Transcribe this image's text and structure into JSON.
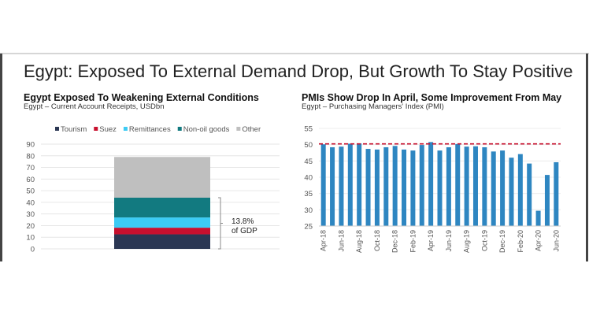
{
  "page": {
    "title": "Egypt: Exposed To External Demand Drop, But Growth To Stay Positive"
  },
  "chart_data": [
    {
      "type": "bar",
      "stacked": true,
      "title": "Egypt Exposed To Weakening External Conditions",
      "subtitle": "Egypt – Current Account Receipts, USDbn",
      "categories": [
        ""
      ],
      "series": [
        {
          "name": "Tourism",
          "values": [
            12.5
          ],
          "color": "#2b3753"
        },
        {
          "name": "Suez",
          "values": [
            5.7
          ],
          "color": "#c8102e"
        },
        {
          "name": "Remittances",
          "values": [
            8.8
          ],
          "color": "#3ccbf4"
        },
        {
          "name": "Non-oil goods",
          "values": [
            17
          ],
          "color": "#127a80"
        },
        {
          "name": "Other",
          "values": [
            35
          ],
          "color": "#bfbfbf"
        }
      ],
      "ylim": [
        0,
        90
      ],
      "yticks": [
        0,
        10,
        20,
        30,
        40,
        50,
        60,
        70,
        80,
        90
      ],
      "legend": "top",
      "grid": true,
      "annotation": {
        "line1": "13.8%",
        "line2": "of GDP",
        "bracket_from": 0,
        "bracket_to": 44
      }
    },
    {
      "type": "bar",
      "title": "PMIs Show Drop In April, Some Improvement From May",
      "subtitle": "Egypt – Purchasing Managers' Index (PMI)",
      "x": [
        "Apr-18",
        "May-18",
        "Jun-18",
        "Jul-18",
        "Aug-18",
        "Sep-18",
        "Oct-18",
        "Nov-18",
        "Dec-18",
        "Jan-19",
        "Feb-19",
        "Mar-19",
        "Apr-19",
        "May-19",
        "Jun-19",
        "Jul-19",
        "Aug-19",
        "Sep-19",
        "Oct-19",
        "Nov-19",
        "Dec-19",
        "Jan-20",
        "Feb-20",
        "Mar-20",
        "Apr-20",
        "May-20",
        "Jun-20"
      ],
      "values": [
        50.1,
        49.2,
        49.4,
        50.3,
        50.4,
        48.7,
        48.5,
        49.2,
        49.6,
        48.5,
        48.2,
        49.9,
        50.8,
        48.2,
        49.2,
        50.2,
        49.4,
        49.5,
        49.2,
        47.9,
        48.2,
        46.0,
        47.1,
        44.2,
        29.7,
        40.7,
        44.6
      ],
      "xtick_labels": [
        "Apr-18",
        "Jun-18",
        "Aug-18",
        "Oct-18",
        "Dec-18",
        "Feb-19",
        "Apr-19",
        "Jun-19",
        "Aug-19",
        "Oct-19",
        "Dec-19",
        "Feb-20",
        "Apr-20",
        "Jun-20"
      ],
      "color": "#2e86c1",
      "reference_line": {
        "value": 50,
        "color": "#c8102e",
        "style": "dashed"
      },
      "ylim": [
        25,
        55
      ],
      "yticks": [
        25,
        30,
        35,
        40,
        45,
        50,
        55
      ],
      "grid": true
    }
  ]
}
